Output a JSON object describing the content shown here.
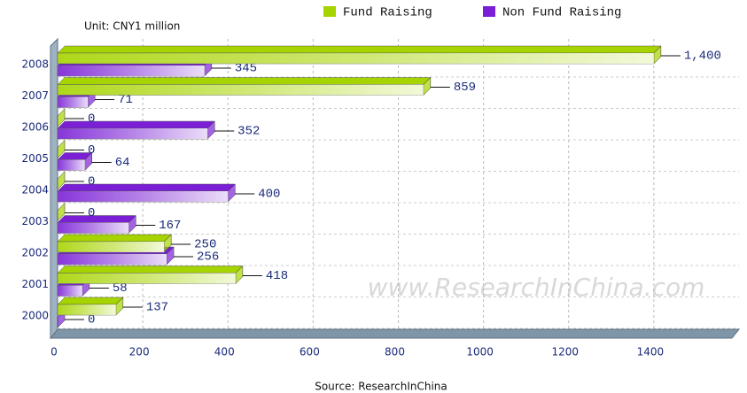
{
  "chart_data": {
    "type": "hbar3d",
    "unit": "Unit: CNY1 million",
    "source": "Source: ResearchInChina",
    "watermark": "www.ResearchInChina.com",
    "categories": [
      "2000",
      "2001",
      "2002",
      "2003",
      "2004",
      "2005",
      "2006",
      "2007",
      "2008"
    ],
    "series": [
      {
        "name": "Fund Raising",
        "color": "#a6d400",
        "values": [
          137,
          418,
          250,
          0,
          0,
          0,
          0,
          859,
          1400
        ],
        "value_labels": [
          "137",
          "418",
          "250",
          "0",
          "0",
          "0",
          "0",
          "859",
          "1,400"
        ]
      },
      {
        "name": "Non Fund Raising",
        "color": "#7a1fd6",
        "values": [
          0,
          58,
          256,
          167,
          400,
          64,
          352,
          71,
          345
        ]
      }
    ],
    "xlim": [
      0,
      1600
    ],
    "xticks": [
      0,
      200,
      400,
      600,
      800,
      1000,
      1200,
      1400
    ],
    "grid": true
  }
}
